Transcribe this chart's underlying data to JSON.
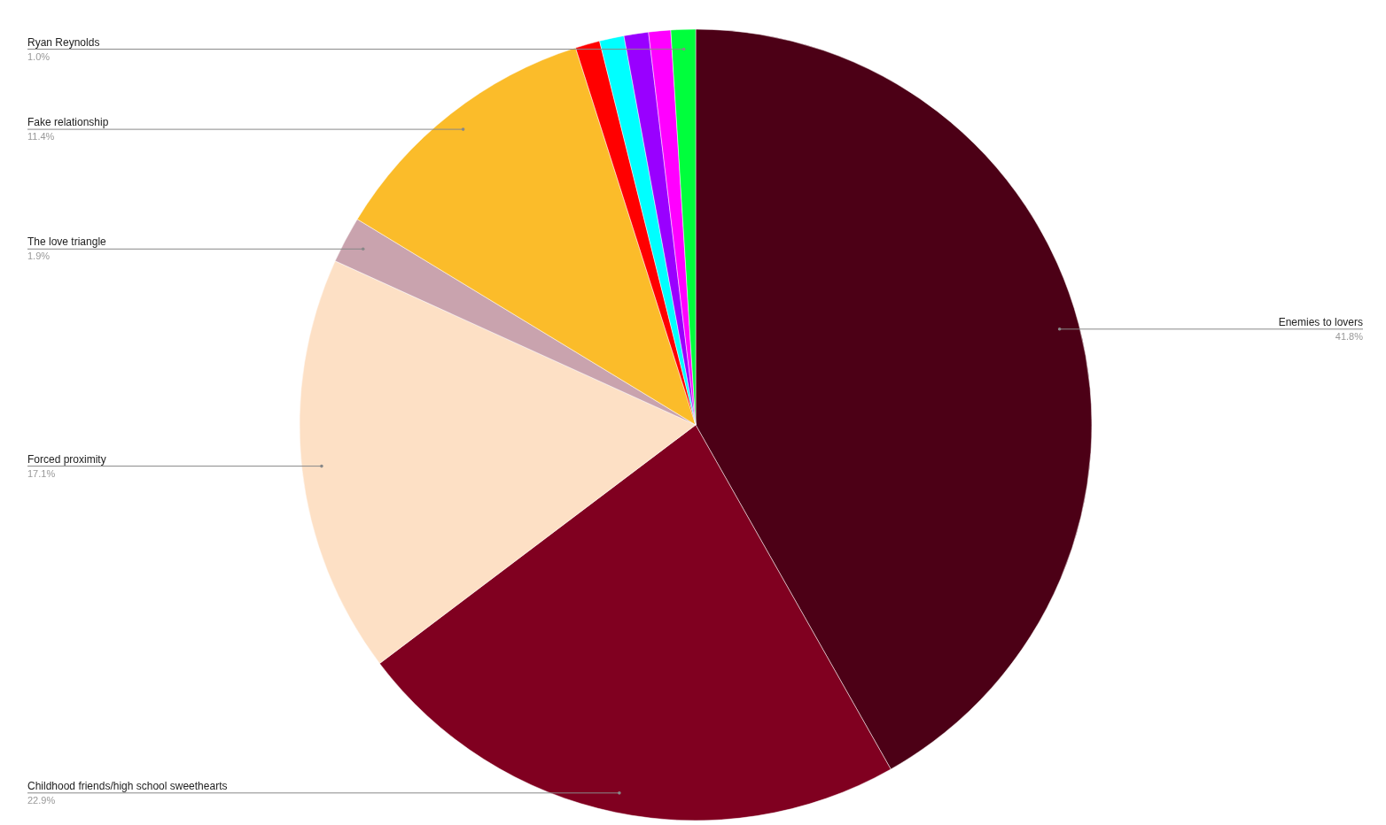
{
  "chart_data": {
    "type": "pie",
    "categories": [
      "Enemies to lovers",
      "Childhood friends/high school sweethearts",
      "Forced proximity",
      "The love triangle",
      "Fake relationship",
      null,
      null,
      null,
      null,
      "Ryan Reynolds"
    ],
    "values": [
      41.8,
      22.9,
      17.1,
      1.9,
      11.4,
      1.0,
      1.0,
      1.0,
      0.9,
      1.0
    ],
    "colors": [
      "#4c0016",
      "#800020",
      "#fde0c5",
      "#c9a3ae",
      "#fbbc2a",
      "#ff0000",
      "#00ffff",
      "#9900ff",
      "#ff00ff",
      "#00ff3c"
    ],
    "value_labels": [
      "41.8%",
      "22.9%",
      "17.1%",
      "1.9%",
      "11.4%",
      null,
      null,
      null,
      null,
      "1.0%"
    ]
  }
}
